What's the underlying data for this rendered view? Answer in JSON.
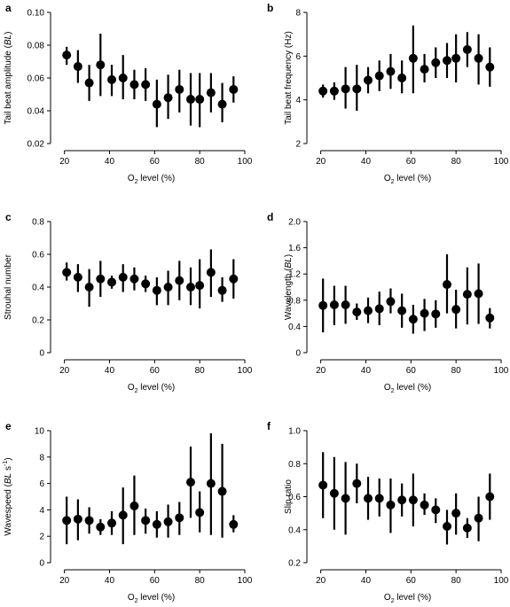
{
  "chart_data": [
    {
      "id": "a",
      "type": "scatter",
      "panel_label": "a",
      "xlabel": "O2 level (%)",
      "xlabel_parts": {
        "main": "O",
        "sub": "2",
        "rest": " level (%)"
      },
      "ylabel": "Tail beat amplitude (BL)",
      "ylabel_parts": [
        {
          "t": "Tail beat amplitude ("
        },
        {
          "t": "BL",
          "i": true
        },
        {
          "t": ")"
        }
      ],
      "xlim": [
        17,
        100
      ],
      "ylim": [
        0.02,
        0.1
      ],
      "xticks": [
        20,
        40,
        60,
        80,
        100
      ],
      "yticks": [
        0.02,
        0.04,
        0.06,
        0.08,
        0.1
      ],
      "ytick_labels": [
        "0.02",
        "0.04",
        "0.06",
        "0.08",
        "0.10"
      ],
      "points": [
        {
          "x": 21,
          "y": 0.074,
          "lo": 0.068,
          "hi": 0.079
        },
        {
          "x": 26,
          "y": 0.067,
          "lo": 0.057,
          "hi": 0.077
        },
        {
          "x": 31,
          "y": 0.057,
          "lo": 0.046,
          "hi": 0.068
        },
        {
          "x": 36,
          "y": 0.068,
          "lo": 0.049,
          "hi": 0.087
        },
        {
          "x": 41,
          "y": 0.059,
          "lo": 0.049,
          "hi": 0.068
        },
        {
          "x": 46,
          "y": 0.06,
          "lo": 0.047,
          "hi": 0.074
        },
        {
          "x": 51,
          "y": 0.056,
          "lo": 0.047,
          "hi": 0.065
        },
        {
          "x": 56,
          "y": 0.056,
          "lo": 0.046,
          "hi": 0.066
        },
        {
          "x": 61,
          "y": 0.044,
          "lo": 0.03,
          "hi": 0.059
        },
        {
          "x": 66,
          "y": 0.048,
          "lo": 0.035,
          "hi": 0.062
        },
        {
          "x": 71,
          "y": 0.053,
          "lo": 0.039,
          "hi": 0.065
        },
        {
          "x": 76,
          "y": 0.047,
          "lo": 0.031,
          "hi": 0.063
        },
        {
          "x": 80,
          "y": 0.047,
          "lo": 0.03,
          "hi": 0.063
        },
        {
          "x": 85,
          "y": 0.051,
          "lo": 0.039,
          "hi": 0.063
        },
        {
          "x": 90,
          "y": 0.044,
          "lo": 0.033,
          "hi": 0.057
        },
        {
          "x": 95,
          "y": 0.053,
          "lo": 0.045,
          "hi": 0.061
        }
      ]
    },
    {
      "id": "b",
      "type": "scatter",
      "panel_label": "b",
      "xlabel": "O2 level (%)",
      "xlabel_parts": {
        "main": "O",
        "sub": "2",
        "rest": " level (%)"
      },
      "ylabel": "Tail beat frequency (Hz)",
      "ylabel_parts": [
        {
          "t": "Tail beat frequency (Hz)"
        }
      ],
      "xlim": [
        17,
        100
      ],
      "ylim": [
        2,
        8
      ],
      "xticks": [
        20,
        40,
        60,
        80,
        100
      ],
      "yticks": [
        2,
        4,
        6,
        8
      ],
      "ytick_labels": [
        "2",
        "4",
        "6",
        "8"
      ],
      "points": [
        {
          "x": 21,
          "y": 4.4,
          "lo": 4.1,
          "hi": 4.7
        },
        {
          "x": 26,
          "y": 4.4,
          "lo": 4.0,
          "hi": 4.8
        },
        {
          "x": 31,
          "y": 4.5,
          "lo": 3.6,
          "hi": 5.5
        },
        {
          "x": 36,
          "y": 4.5,
          "lo": 3.5,
          "hi": 5.6
        },
        {
          "x": 41,
          "y": 4.9,
          "lo": 4.3,
          "hi": 5.5
        },
        {
          "x": 46,
          "y": 5.1,
          "lo": 4.4,
          "hi": 5.8
        },
        {
          "x": 51,
          "y": 5.3,
          "lo": 4.5,
          "hi": 6.1
        },
        {
          "x": 56,
          "y": 5.0,
          "lo": 4.3,
          "hi": 5.8
        },
        {
          "x": 61,
          "y": 5.9,
          "lo": 4.3,
          "hi": 7.4
        },
        {
          "x": 66,
          "y": 5.4,
          "lo": 4.8,
          "hi": 6.1
        },
        {
          "x": 71,
          "y": 5.7,
          "lo": 5.0,
          "hi": 6.4
        },
        {
          "x": 76,
          "y": 5.8,
          "lo": 5.0,
          "hi": 6.6
        },
        {
          "x": 80,
          "y": 5.9,
          "lo": 4.8,
          "hi": 7.0
        },
        {
          "x": 85,
          "y": 6.3,
          "lo": 5.5,
          "hi": 7.1
        },
        {
          "x": 90,
          "y": 5.9,
          "lo": 4.7,
          "hi": 7.0
        },
        {
          "x": 95,
          "y": 5.5,
          "lo": 4.6,
          "hi": 6.4
        }
      ]
    },
    {
      "id": "c",
      "type": "scatter",
      "panel_label": "c",
      "xlabel": "O2 level (%)",
      "xlabel_parts": {
        "main": "O",
        "sub": "2",
        "rest": " level (%)"
      },
      "ylabel": "Strouhal number",
      "ylabel_parts": [
        {
          "t": "Strouhal number"
        }
      ],
      "xlim": [
        17,
        100
      ],
      "ylim": [
        0,
        0.8
      ],
      "xticks": [
        20,
        40,
        60,
        80,
        100
      ],
      "yticks": [
        0,
        0.2,
        0.4,
        0.6,
        0.8
      ],
      "ytick_labels": [
        "0",
        "0.2",
        "0.4",
        "0.6",
        "0.8"
      ],
      "points": [
        {
          "x": 21,
          "y": 0.49,
          "lo": 0.44,
          "hi": 0.55
        },
        {
          "x": 26,
          "y": 0.46,
          "lo": 0.37,
          "hi": 0.54
        },
        {
          "x": 31,
          "y": 0.4,
          "lo": 0.28,
          "hi": 0.51
        },
        {
          "x": 36,
          "y": 0.45,
          "lo": 0.34,
          "hi": 0.56
        },
        {
          "x": 41,
          "y": 0.43,
          "lo": 0.39,
          "hi": 0.47
        },
        {
          "x": 46,
          "y": 0.46,
          "lo": 0.37,
          "hi": 0.54
        },
        {
          "x": 51,
          "y": 0.45,
          "lo": 0.38,
          "hi": 0.52
        },
        {
          "x": 56,
          "y": 0.42,
          "lo": 0.37,
          "hi": 0.47
        },
        {
          "x": 61,
          "y": 0.38,
          "lo": 0.29,
          "hi": 0.46
        },
        {
          "x": 66,
          "y": 0.4,
          "lo": 0.29,
          "hi": 0.5
        },
        {
          "x": 71,
          "y": 0.44,
          "lo": 0.32,
          "hi": 0.56
        },
        {
          "x": 76,
          "y": 0.4,
          "lo": 0.29,
          "hi": 0.52
        },
        {
          "x": 80,
          "y": 0.41,
          "lo": 0.27,
          "hi": 0.57
        },
        {
          "x": 85,
          "y": 0.49,
          "lo": 0.34,
          "hi": 0.63
        },
        {
          "x": 90,
          "y": 0.38,
          "lo": 0.31,
          "hi": 0.46
        },
        {
          "x": 95,
          "y": 0.45,
          "lo": 0.33,
          "hi": 0.57
        }
      ]
    },
    {
      "id": "d",
      "type": "scatter",
      "panel_label": "d",
      "xlabel": "O2 level (%)",
      "xlabel_parts": {
        "main": "O",
        "sub": "2",
        "rest": " level (%)"
      },
      "ylabel": "Wavelength (BL)",
      "ylabel_parts": [
        {
          "t": "Wavelength ("
        },
        {
          "t": "BL",
          "i": true
        },
        {
          "t": ")"
        }
      ],
      "xlim": [
        17,
        100
      ],
      "ylim": [
        0,
        2.0
      ],
      "xticks": [
        20,
        40,
        60,
        80,
        100
      ],
      "yticks": [
        0,
        0.4,
        0.8,
        1.2,
        1.6,
        2.0
      ],
      "ytick_labels": [
        "0",
        "0.4",
        "0.8",
        "1.2",
        "1.6",
        "2.0"
      ],
      "points": [
        {
          "x": 21,
          "y": 0.72,
          "lo": 0.31,
          "hi": 1.13
        },
        {
          "x": 26,
          "y": 0.73,
          "lo": 0.42,
          "hi": 1.02
        },
        {
          "x": 31,
          "y": 0.73,
          "lo": 0.44,
          "hi": 1.02
        },
        {
          "x": 36,
          "y": 0.62,
          "lo": 0.5,
          "hi": 0.75
        },
        {
          "x": 41,
          "y": 0.64,
          "lo": 0.45,
          "hi": 0.84
        },
        {
          "x": 46,
          "y": 0.67,
          "lo": 0.42,
          "hi": 0.93
        },
        {
          "x": 51,
          "y": 0.78,
          "lo": 0.6,
          "hi": 0.98
        },
        {
          "x": 56,
          "y": 0.64,
          "lo": 0.38,
          "hi": 0.9
        },
        {
          "x": 61,
          "y": 0.51,
          "lo": 0.29,
          "hi": 0.73
        },
        {
          "x": 66,
          "y": 0.6,
          "lo": 0.33,
          "hi": 0.82
        },
        {
          "x": 71,
          "y": 0.59,
          "lo": 0.38,
          "hi": 0.8
        },
        {
          "x": 76,
          "y": 1.04,
          "lo": 0.6,
          "hi": 1.5
        },
        {
          "x": 80,
          "y": 0.66,
          "lo": 0.37,
          "hi": 0.96
        },
        {
          "x": 85,
          "y": 0.89,
          "lo": 0.43,
          "hi": 1.3
        },
        {
          "x": 90,
          "y": 0.9,
          "lo": 0.44,
          "hi": 1.36
        },
        {
          "x": 95,
          "y": 0.53,
          "lo": 0.37,
          "hi": 0.68
        }
      ]
    },
    {
      "id": "e",
      "type": "scatter",
      "panel_label": "e",
      "xlabel": "O2 level (%)",
      "xlabel_parts": {
        "main": "O",
        "sub": "2",
        "rest": " level (%)"
      },
      "ylabel": "Wavespeed (BL s-1)",
      "ylabel_parts": [
        {
          "t": "Wavespeed ("
        },
        {
          "t": "BL",
          "i": true
        },
        {
          "t": " s"
        },
        {
          "t": "-1",
          "sup": true
        },
        {
          "t": ")"
        }
      ],
      "xlim": [
        17,
        100
      ],
      "ylim": [
        0,
        10
      ],
      "xticks": [
        20,
        40,
        60,
        80,
        100
      ],
      "yticks": [
        0,
        2,
        4,
        6,
        8,
        10
      ],
      "ytick_labels": [
        "0",
        "2",
        "4",
        "6",
        "8",
        "10"
      ],
      "points": [
        {
          "x": 21,
          "y": 3.2,
          "lo": 1.4,
          "hi": 5.0
        },
        {
          "x": 26,
          "y": 3.3,
          "lo": 1.7,
          "hi": 4.8
        },
        {
          "x": 31,
          "y": 3.2,
          "lo": 2.2,
          "hi": 4.2
        },
        {
          "x": 36,
          "y": 2.7,
          "lo": 2.1,
          "hi": 3.3
        },
        {
          "x": 41,
          "y": 3.0,
          "lo": 2.1,
          "hi": 3.9
        },
        {
          "x": 46,
          "y": 3.6,
          "lo": 1.4,
          "hi": 5.7
        },
        {
          "x": 51,
          "y": 4.3,
          "lo": 2.1,
          "hi": 6.6
        },
        {
          "x": 56,
          "y": 3.2,
          "lo": 2.2,
          "hi": 4.1
        },
        {
          "x": 61,
          "y": 2.9,
          "lo": 1.9,
          "hi": 3.9
        },
        {
          "x": 66,
          "y": 3.1,
          "lo": 1.9,
          "hi": 4.4
        },
        {
          "x": 71,
          "y": 3.4,
          "lo": 2.1,
          "hi": 4.6
        },
        {
          "x": 76,
          "y": 6.1,
          "lo": 3.4,
          "hi": 8.8
        },
        {
          "x": 80,
          "y": 3.8,
          "lo": 2.3,
          "hi": 5.4
        },
        {
          "x": 85,
          "y": 6.0,
          "lo": 2.1,
          "hi": 9.8
        },
        {
          "x": 90,
          "y": 5.4,
          "lo": 1.9,
          "hi": 9.0
        },
        {
          "x": 95,
          "y": 2.9,
          "lo": 2.3,
          "hi": 3.6
        }
      ]
    },
    {
      "id": "f",
      "type": "scatter",
      "panel_label": "f",
      "xlabel": "O2 level (%)",
      "xlabel_parts": {
        "main": "O",
        "sub": "2",
        "rest": " level (%)"
      },
      "ylabel": "Slip ratio",
      "ylabel_parts": [
        {
          "t": "Slip ratio"
        }
      ],
      "xlim": [
        17,
        100
      ],
      "ylim": [
        0.2,
        1.0
      ],
      "xticks": [
        20,
        40,
        60,
        80,
        100
      ],
      "yticks": [
        0.2,
        0.4,
        0.6,
        0.8,
        1.0
      ],
      "ytick_labels": [
        "0.2",
        "0.4",
        "0.6",
        "0.8",
        "1.0"
      ],
      "points": [
        {
          "x": 21,
          "y": 0.67,
          "lo": 0.47,
          "hi": 0.87
        },
        {
          "x": 26,
          "y": 0.62,
          "lo": 0.4,
          "hi": 0.84
        },
        {
          "x": 31,
          "y": 0.59,
          "lo": 0.37,
          "hi": 0.81
        },
        {
          "x": 36,
          "y": 0.68,
          "lo": 0.56,
          "hi": 0.8
        },
        {
          "x": 41,
          "y": 0.59,
          "lo": 0.46,
          "hi": 0.72
        },
        {
          "x": 46,
          "y": 0.59,
          "lo": 0.48,
          "hi": 0.71
        },
        {
          "x": 51,
          "y": 0.55,
          "lo": 0.38,
          "hi": 0.71
        },
        {
          "x": 56,
          "y": 0.58,
          "lo": 0.48,
          "hi": 0.68
        },
        {
          "x": 61,
          "y": 0.58,
          "lo": 0.42,
          "hi": 0.74
        },
        {
          "x": 66,
          "y": 0.55,
          "lo": 0.49,
          "hi": 0.62
        },
        {
          "x": 71,
          "y": 0.52,
          "lo": 0.44,
          "hi": 0.59
        },
        {
          "x": 76,
          "y": 0.42,
          "lo": 0.31,
          "hi": 0.52
        },
        {
          "x": 80,
          "y": 0.5,
          "lo": 0.37,
          "hi": 0.62
        },
        {
          "x": 85,
          "y": 0.41,
          "lo": 0.35,
          "hi": 0.47
        },
        {
          "x": 90,
          "y": 0.47,
          "lo": 0.33,
          "hi": 0.6
        },
        {
          "x": 95,
          "y": 0.6,
          "lo": 0.46,
          "hi": 0.74
        }
      ]
    }
  ]
}
